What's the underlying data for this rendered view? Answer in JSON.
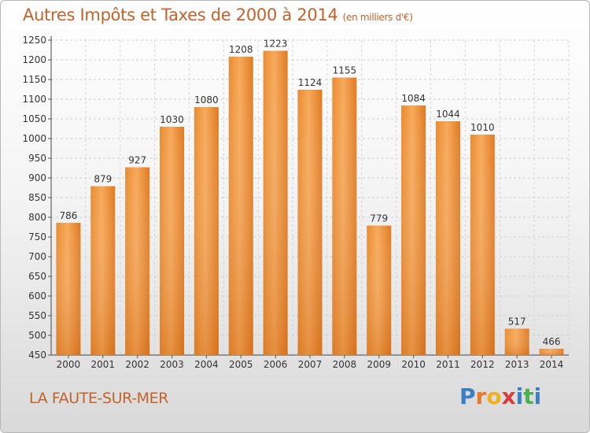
{
  "header": {
    "title": "Autres Impôts et Taxes de 2000 à 2014",
    "unit": "(en milliers d'€)"
  },
  "footer": {
    "commune": "LA FAUTE-SUR-MER",
    "logo_letters": [
      "P",
      "r",
      "o",
      "x",
      "i",
      "t",
      "i"
    ],
    "logo_colors": [
      "#3b7fc4",
      "#e8782a",
      "#f0b020",
      "#d83c3c",
      "#3b7fc4",
      "#4caf50",
      "#3b7fc4"
    ]
  },
  "colors": {
    "accent": "#c4622b",
    "bar_light": "#f7aa5a",
    "bar_dark": "#e07b22"
  },
  "chart_data": {
    "type": "bar",
    "categories": [
      "2000",
      "2001",
      "2002",
      "2003",
      "2004",
      "2005",
      "2006",
      "2007",
      "2008",
      "2009",
      "2010",
      "2011",
      "2012",
      "2013",
      "2014"
    ],
    "values": [
      786,
      879,
      927,
      1030,
      1080,
      1208,
      1223,
      1124,
      1155,
      779,
      1084,
      1044,
      1010,
      517,
      466
    ],
    "data_labels": [
      "786",
      "879",
      "927",
      "1030",
      "1080",
      "1208",
      "1223",
      "1124",
      "1155",
      "779",
      "1084",
      "1044",
      "1010",
      "517",
      "466"
    ],
    "yticks": [
      "450",
      "500",
      "550",
      "600",
      "650",
      "700",
      "750",
      "800",
      "850",
      "900",
      "950",
      "1000",
      "1050",
      "1100",
      "1150",
      "1200",
      "1250"
    ],
    "ylim": [
      450,
      1250
    ],
    "grid": true,
    "legend": "none"
  }
}
